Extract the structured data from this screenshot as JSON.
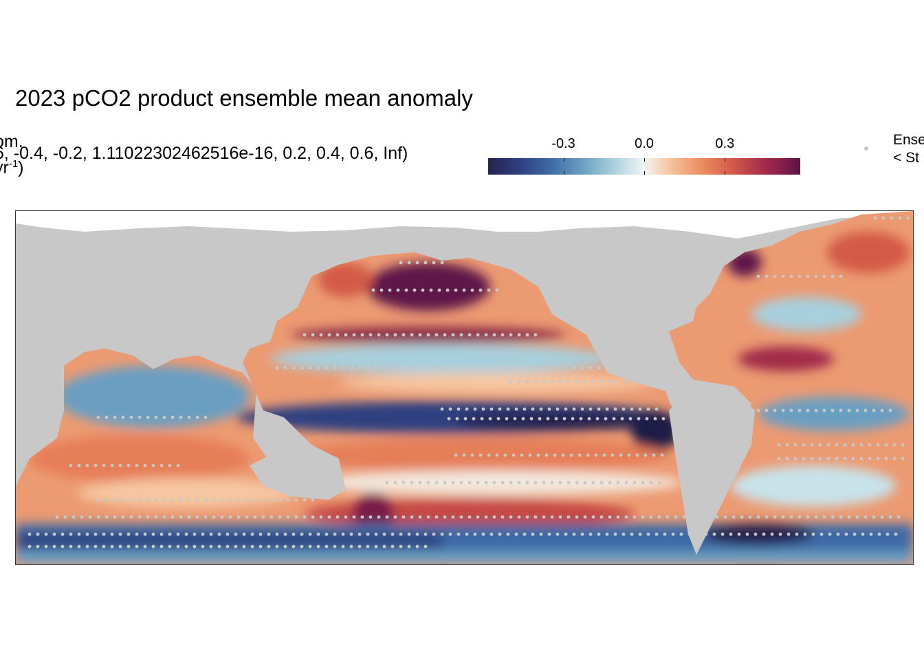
{
  "chart_data": {
    "type": "heatmap",
    "title": "2023 pCO2 product ensemble mean anomaly",
    "legend_title_lines": [
      "om.",
      "6, -0.4, -0.2, 1.11022302462516e-16, 0.2, 0.4, 0.6, Inf)",
      "yr"
    ],
    "legend_title_superscript": "-1",
    "legend_title_close": ")",
    "colorbar": {
      "ticks": [
        -0.3,
        0.0,
        0.3
      ],
      "tick_labels": [
        "-0.3",
        "0.0",
        "0.3"
      ],
      "range": [
        -0.58,
        0.58
      ],
      "palette": [
        "#26234f",
        "#2e3f80",
        "#3d6aa6",
        "#6a9fc2",
        "#a8cfdd",
        "#f3f5f3",
        "#f6c6a0",
        "#ec8f63",
        "#d35a47",
        "#a12a4a",
        "#5e1348"
      ]
    },
    "point_legend": {
      "lines": [
        "Ense",
        "< St"
      ],
      "color": "#c8c8c8"
    },
    "map": {
      "land_color": "#c8c8c8",
      "ice_color": "#ffffff",
      "x_range": [
        0,
        360
      ],
      "y_range": [
        -80,
        80
      ]
    }
  }
}
